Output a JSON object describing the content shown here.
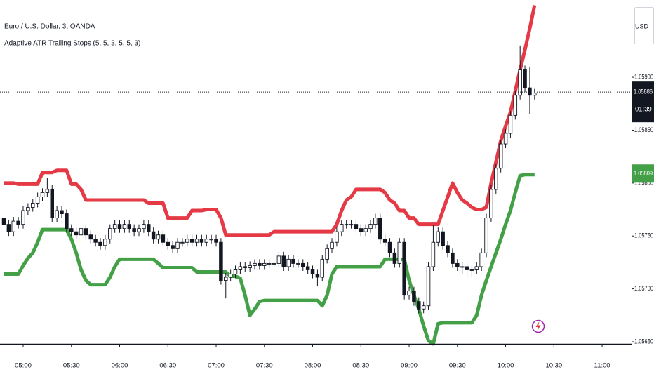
{
  "chart_data": {
    "type": "candlestick",
    "title": "Euro / U.S. Dollar, 3, OANDA",
    "indicator": "Adaptive ATR Trailing Stops (5, 5, 3, 5, 5, 3)",
    "currency": "USD",
    "up_color": "#ffffff",
    "down_color": "#131722",
    "xlim": [
      285.6,
      678.3
    ],
    "ylim": [
      1.05648,
      1.05973
    ],
    "xticks": [
      {
        "value": 300,
        "label": "05:00"
      },
      {
        "value": 330,
        "label": "05:30"
      },
      {
        "value": 360,
        "label": "06:00"
      },
      {
        "value": 390,
        "label": "06:30"
      },
      {
        "value": 420,
        "label": "07:00"
      },
      {
        "value": 450,
        "label": "07:30"
      },
      {
        "value": 480,
        "label": "08:00"
      },
      {
        "value": 510,
        "label": "08:30"
      },
      {
        "value": 540,
        "label": "09:00"
      },
      {
        "value": 570,
        "label": "09:30"
      },
      {
        "value": 600,
        "label": "10:00"
      },
      {
        "value": 630,
        "label": "10:30"
      },
      {
        "value": 660,
        "label": "11:00"
      }
    ],
    "yticks": [
      {
        "value": 1.0565,
        "label": "1.05650"
      },
      {
        "value": 1.057,
        "label": "1.05700"
      },
      {
        "value": 1.0575,
        "label": "1.05750"
      },
      {
        "value": 1.058,
        "label": "1.05800"
      },
      {
        "value": 1.0585,
        "label": "1.05850"
      },
      {
        "value": 1.059,
        "label": "1.05900"
      }
    ],
    "x": [
      288,
      291,
      294,
      297,
      300,
      303,
      306,
      309,
      312,
      315,
      318,
      321,
      324,
      327,
      330,
      333,
      336,
      339,
      342,
      345,
      348,
      351,
      354,
      357,
      360,
      363,
      366,
      369,
      372,
      375,
      378,
      381,
      384,
      387,
      390,
      393,
      396,
      399,
      402,
      405,
      408,
      411,
      414,
      417,
      420,
      423,
      426,
      429,
      432,
      435,
      438,
      441,
      444,
      447,
      450,
      453,
      456,
      459,
      462,
      465,
      468,
      471,
      474,
      477,
      480,
      483,
      486,
      489,
      492,
      495,
      498,
      501,
      504,
      507,
      510,
      513,
      516,
      519,
      522,
      525,
      528,
      531,
      534,
      537,
      540,
      543,
      546,
      549,
      552,
      555,
      558,
      561,
      564,
      567,
      570,
      573,
      576,
      579,
      582,
      585,
      588,
      591,
      594,
      597,
      600,
      603,
      606,
      609,
      612,
      615,
      618
    ],
    "open": [
      1.05767,
      1.05761,
      1.05754,
      1.05764,
      1.05761,
      1.05774,
      1.05777,
      1.05781,
      1.05787,
      1.05791,
      1.05794,
      1.05767,
      1.05774,
      1.05771,
      1.05757,
      1.05754,
      1.05751,
      1.05757,
      1.05751,
      1.05747,
      1.05744,
      1.05741,
      1.05747,
      1.05757,
      1.05761,
      1.05757,
      1.05761,
      1.05757,
      1.05754,
      1.05757,
      1.05761,
      1.05754,
      1.05747,
      1.05751,
      1.05744,
      1.05741,
      1.05738,
      1.05744,
      1.05744,
      1.05747,
      1.05744,
      1.05747,
      1.05744,
      1.05747,
      1.05747,
      1.05744,
      1.05708,
      1.05711,
      1.05714,
      1.05718,
      1.05721,
      1.0572,
      1.05722,
      1.05724,
      1.05722,
      1.05724,
      1.05724,
      1.05724,
      1.05731,
      1.05721,
      1.05728,
      1.05724,
      1.05724,
      1.05721,
      1.05718,
      1.05714,
      1.05711,
      1.05728,
      1.05738,
      1.05744,
      1.05754,
      1.05761,
      1.05761,
      1.05761,
      1.05757,
      1.05754,
      1.05757,
      1.05761,
      1.05767,
      1.05747,
      1.05744,
      1.05734,
      1.05724,
      1.05744,
      1.05694,
      1.05698,
      1.05688,
      1.05681,
      1.05684,
      1.05721,
      1.05744,
      1.05754,
      1.05741,
      1.05734,
      1.05724,
      1.05721,
      1.05721,
      1.05718,
      1.05718,
      1.05721,
      1.05734,
      1.05767,
      1.05794,
      1.05814,
      1.05837,
      1.05847,
      1.05864,
      1.05883,
      1.05907,
      1.0589,
      1.05883
    ],
    "high": [
      1.05771,
      1.05765,
      1.05768,
      1.05768,
      1.05778,
      1.05781,
      1.05785,
      1.05791,
      1.05795,
      1.05805,
      1.05798,
      1.05778,
      1.05778,
      1.05775,
      1.05761,
      1.05758,
      1.05761,
      1.05761,
      1.05755,
      1.05751,
      1.05748,
      1.05751,
      1.05761,
      1.05765,
      1.05765,
      1.05765,
      1.05765,
      1.05761,
      1.05761,
      1.05765,
      1.05765,
      1.05758,
      1.05755,
      1.05755,
      1.05748,
      1.05745,
      1.05748,
      1.05748,
      1.05751,
      1.05751,
      1.05751,
      1.05751,
      1.05751,
      1.05751,
      1.05751,
      1.05748,
      1.05715,
      1.05718,
      1.05722,
      1.05725,
      1.05725,
      1.05726,
      1.05728,
      1.05728,
      1.05728,
      1.05728,
      1.05728,
      1.05735,
      1.05735,
      1.05732,
      1.05732,
      1.05728,
      1.05728,
      1.05725,
      1.05722,
      1.05718,
      1.05732,
      1.05742,
      1.05748,
      1.05758,
      1.05765,
      1.05765,
      1.05765,
      1.05765,
      1.05761,
      1.05761,
      1.05765,
      1.05771,
      1.05771,
      1.05751,
      1.05748,
      1.05738,
      1.05748,
      1.05748,
      1.05702,
      1.05702,
      1.05692,
      1.05688,
      1.05725,
      1.0576,
      1.05758,
      1.05758,
      1.05745,
      1.05738,
      1.05728,
      1.05725,
      1.05725,
      1.05722,
      1.05725,
      1.05738,
      1.05771,
      1.05798,
      1.05818,
      1.05841,
      1.05851,
      1.05868,
      1.05887,
      1.0593,
      1.05911,
      1.0591,
      1.05889
    ],
    "low": [
      1.05757,
      1.0575,
      1.0575,
      1.05757,
      1.05757,
      1.0577,
      1.05773,
      1.05777,
      1.05783,
      1.05787,
      1.05763,
      1.05763,
      1.05767,
      1.05753,
      1.0575,
      1.05747,
      1.05747,
      1.05747,
      1.05743,
      1.0574,
      1.05737,
      1.05737,
      1.05743,
      1.05753,
      1.05753,
      1.05753,
      1.05753,
      1.0575,
      1.0575,
      1.05753,
      1.0575,
      1.05743,
      1.05743,
      1.0574,
      1.05737,
      1.05734,
      1.05734,
      1.0574,
      1.0574,
      1.0574,
      1.0574,
      1.0574,
      1.0574,
      1.05743,
      1.0574,
      1.05704,
      1.05691,
      1.05707,
      1.0571,
      1.05714,
      1.05716,
      1.05716,
      1.05718,
      1.05718,
      1.05718,
      1.0572,
      1.0572,
      1.0572,
      1.05717,
      1.05717,
      1.0572,
      1.0572,
      1.05717,
      1.05714,
      1.0571,
      1.05703,
      1.05707,
      1.05724,
      1.05734,
      1.0574,
      1.0575,
      1.05757,
      1.05757,
      1.05753,
      1.0575,
      1.0575,
      1.05753,
      1.05757,
      1.05743,
      1.0574,
      1.0573,
      1.0572,
      1.0572,
      1.0569,
      1.0569,
      1.05684,
      1.05677,
      1.05677,
      1.0568,
      1.05717,
      1.0574,
      1.05737,
      1.0573,
      1.0572,
      1.05717,
      1.05714,
      1.05711,
      1.05711,
      1.05714,
      1.05717,
      1.0573,
      1.05763,
      1.0579,
      1.0581,
      1.05833,
      1.05843,
      1.0586,
      1.05879,
      1.05886,
      1.05865,
      1.05879
    ],
    "close": [
      1.05761,
      1.05754,
      1.05764,
      1.05761,
      1.05774,
      1.05777,
      1.05781,
      1.05787,
      1.05791,
      1.05794,
      1.05767,
      1.05774,
      1.05771,
      1.05757,
      1.05754,
      1.05751,
      1.05757,
      1.05751,
      1.05747,
      1.05744,
      1.05741,
      1.05747,
      1.05757,
      1.05761,
      1.05757,
      1.05761,
      1.05757,
      1.05754,
      1.05757,
      1.05761,
      1.05754,
      1.05747,
      1.05751,
      1.05744,
      1.05741,
      1.05738,
      1.05744,
      1.05744,
      1.05747,
      1.05744,
      1.05747,
      1.05744,
      1.05747,
      1.05747,
      1.05744,
      1.05708,
      1.05711,
      1.05714,
      1.05718,
      1.05721,
      1.0572,
      1.05722,
      1.05724,
      1.05722,
      1.05724,
      1.05724,
      1.05724,
      1.05731,
      1.05721,
      1.05728,
      1.05724,
      1.05724,
      1.05721,
      1.05718,
      1.05714,
      1.05711,
      1.05728,
      1.05738,
      1.05744,
      1.05754,
      1.05761,
      1.05761,
      1.05761,
      1.05757,
      1.05754,
      1.05757,
      1.05761,
      1.05767,
      1.05747,
      1.05744,
      1.05734,
      1.05724,
      1.05744,
      1.05694,
      1.05698,
      1.05688,
      1.05681,
      1.05684,
      1.05721,
      1.05744,
      1.05754,
      1.05741,
      1.05734,
      1.05724,
      1.05721,
      1.05721,
      1.05718,
      1.05718,
      1.05721,
      1.05734,
      1.05767,
      1.05794,
      1.05814,
      1.05837,
      1.05847,
      1.05864,
      1.05883,
      1.05907,
      1.0589,
      1.05883,
      1.05885
    ],
    "lines": [
      {
        "color": "#e53945",
        "values": [
          1.058,
          1.058,
          1.058,
          1.05799,
          1.05799,
          1.05799,
          1.05799,
          1.05799,
          1.0581,
          1.0581,
          1.0581,
          1.05812,
          1.05812,
          1.05812,
          1.05799,
          1.05799,
          1.05794,
          1.05784,
          1.05784,
          1.05784,
          1.05784,
          1.05784,
          1.05784,
          1.05784,
          1.05784,
          1.05784,
          1.05784,
          1.05784,
          1.05784,
          1.05784,
          1.05781,
          1.05781,
          1.05781,
          1.05781,
          1.05767,
          1.05767,
          1.05767,
          1.05767,
          1.05767,
          1.05774,
          1.05774,
          1.05774,
          1.05775,
          1.05775,
          1.05775,
          1.05767,
          1.05751,
          1.05751,
          1.05751,
          1.05751,
          1.05751,
          1.05751,
          1.05751,
          1.05751,
          1.05751,
          1.05751,
          1.05754,
          1.05754,
          1.05754,
          1.05754,
          1.05754,
          1.05754,
          1.05754,
          1.05754,
          1.05754,
          1.05754,
          1.05754,
          1.05754,
          1.05754,
          1.05761,
          1.05774,
          1.05784,
          1.05787,
          1.05794,
          1.05794,
          1.05794,
          1.05794,
          1.05794,
          1.05794,
          1.05791,
          1.05784,
          1.05781,
          1.05774,
          1.05774,
          1.05767,
          1.05767,
          1.05761,
          1.05761,
          1.05761,
          1.05761,
          1.05761,
          1.05774,
          1.05787,
          1.058,
          1.05791,
          1.05784,
          1.05781,
          1.05777,
          1.05775,
          1.05775,
          1.05777,
          1.058,
          1.0582,
          1.0584,
          1.05854,
          1.05867,
          1.05887,
          1.05907,
          1.05926,
          1.05946,
          1.05968
        ]
      },
      {
        "color": "#43a047",
        "values": [
          1.05714,
          1.05714,
          1.05714,
          1.05714,
          1.05722,
          1.05729,
          1.05734,
          1.05744,
          1.05756,
          1.05756,
          1.05756,
          1.05756,
          1.05756,
          1.05756,
          1.05747,
          1.05734,
          1.05718,
          1.05708,
          1.05704,
          1.05704,
          1.05704,
          1.05704,
          1.05711,
          1.05721,
          1.05728,
          1.05728,
          1.05728,
          1.05728,
          1.05728,
          1.05728,
          1.05728,
          1.05728,
          1.05724,
          1.0572,
          1.0572,
          1.0572,
          1.0572,
          1.0572,
          1.0572,
          1.0572,
          1.05716,
          1.05716,
          1.05716,
          1.05716,
          1.05716,
          1.05716,
          1.05716,
          1.05712,
          1.05712,
          1.0571,
          1.05694,
          1.05675,
          1.05681,
          1.05688,
          1.05689,
          1.05689,
          1.05689,
          1.05689,
          1.05689,
          1.05689,
          1.05689,
          1.05689,
          1.05689,
          1.05689,
          1.05689,
          1.05689,
          1.05684,
          1.05694,
          1.05714,
          1.05721,
          1.05721,
          1.05721,
          1.05721,
          1.05721,
          1.05721,
          1.05721,
          1.05721,
          1.05721,
          1.05721,
          1.05728,
          1.05728,
          1.05728,
          1.05728,
          1.05728,
          1.05708,
          1.05694,
          1.05681,
          1.05665,
          1.05651,
          1.05648,
          1.05667,
          1.05668,
          1.05668,
          1.05668,
          1.05668,
          1.05668,
          1.05668,
          1.05668,
          1.05675,
          1.05694,
          1.05708,
          1.05721,
          1.05734,
          1.05747,
          1.05761,
          1.05774,
          1.05791,
          1.05807,
          1.05808,
          1.05808,
          1.05808
        ]
      }
    ],
    "last_price": 1.05886,
    "countdown": "01:39",
    "last_stop": 1.05809,
    "last_stop_color": "#43a047"
  }
}
